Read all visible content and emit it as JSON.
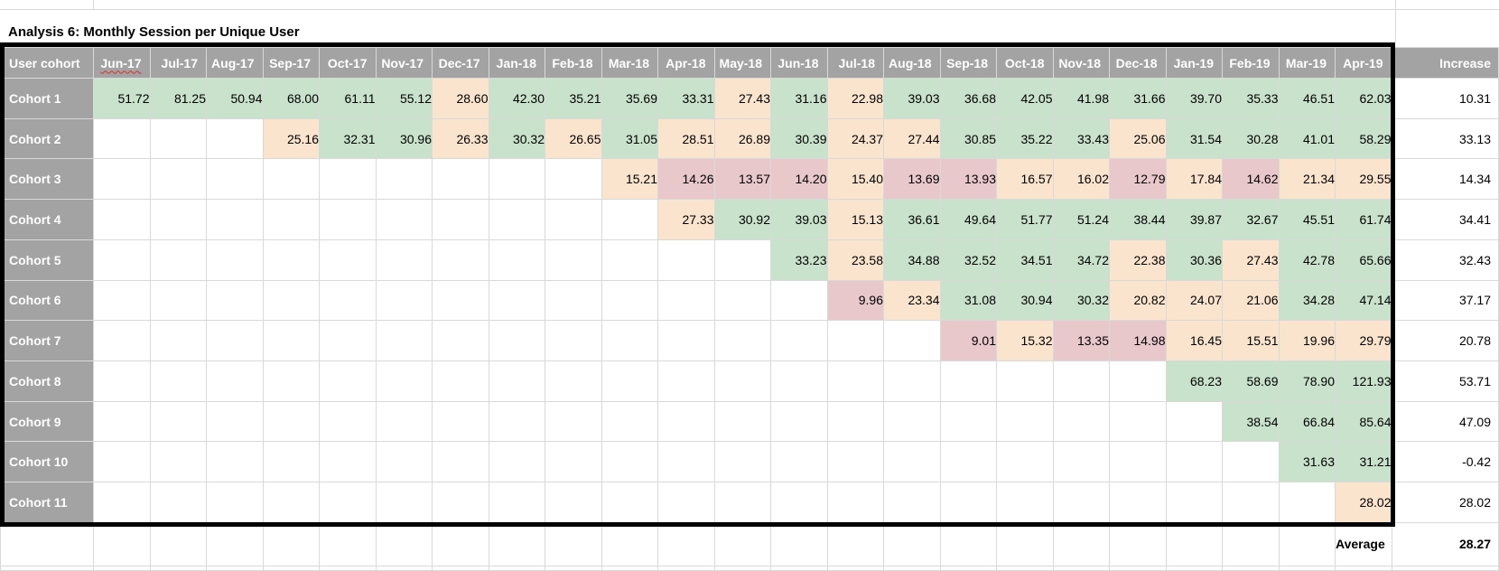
{
  "title": "Analysis 6: Monthly Session per Unique User",
  "table": {
    "corner_label": "User cohort",
    "months": [
      "Jun-17",
      "Jul-17",
      "Aug-17",
      "Sep-17",
      "Oct-17",
      "Nov-17",
      "Dec-17",
      "Jan-18",
      "Feb-18",
      "Mar-18",
      "Apr-18",
      "May-18",
      "Jun-18",
      "Jul-18",
      "Aug-18",
      "Sep-18",
      "Oct-18",
      "Nov-18",
      "Dec-18",
      "Jan-19",
      "Feb-19",
      "Mar-19",
      "Apr-19"
    ],
    "misspelled_month": "Jun-17",
    "increase_label": "Increase",
    "rows": [
      {
        "label": "Cohort 1",
        "start": 0,
        "values": [
          "51.72",
          "81.25",
          "50.94",
          "68.00",
          "61.11",
          "55.12",
          "28.60",
          "42.30",
          "35.21",
          "35.69",
          "33.31",
          "27.43",
          "31.16",
          "22.98",
          "39.03",
          "36.68",
          "42.05",
          "41.98",
          "31.66",
          "39.70",
          "35.33",
          "46.51",
          "62.03"
        ],
        "increase": "10.31"
      },
      {
        "label": "Cohort 2",
        "start": 3,
        "values": [
          "25.16",
          "32.31",
          "30.96",
          "26.33",
          "30.32",
          "26.65",
          "31.05",
          "28.51",
          "26.89",
          "30.39",
          "24.37",
          "27.44",
          "30.85",
          "35.22",
          "33.43",
          "25.06",
          "31.54",
          "30.28",
          "41.01",
          "58.29"
        ],
        "increase": "33.13"
      },
      {
        "label": "Cohort 3",
        "start": 9,
        "values": [
          "15.21",
          "14.26",
          "13.57",
          "14.20",
          "15.40",
          "13.69",
          "13.93",
          "16.57",
          "16.02",
          "12.79",
          "17.84",
          "14.62",
          "21.34",
          "29.55"
        ],
        "increase": "14.34"
      },
      {
        "label": "Cohort 4",
        "start": 10,
        "values": [
          "27.33",
          "30.92",
          "39.03",
          "15.13",
          "36.61",
          "49.64",
          "51.77",
          "51.24",
          "38.44",
          "39.87",
          "32.67",
          "45.51",
          "61.74"
        ],
        "increase": "34.41"
      },
      {
        "label": "Cohort 5",
        "start": 12,
        "values": [
          "33.23",
          "23.58",
          "34.88",
          "32.52",
          "34.51",
          "34.72",
          "22.38",
          "30.36",
          "27.43",
          "42.78",
          "65.66"
        ],
        "increase": "32.43"
      },
      {
        "label": "Cohort 6",
        "start": 13,
        "values": [
          "9.96",
          "23.34",
          "31.08",
          "30.94",
          "30.32",
          "20.82",
          "24.07",
          "21.06",
          "34.28",
          "47.14"
        ],
        "increase": "37.17"
      },
      {
        "label": "Cohort 7",
        "start": 15,
        "values": [
          "9.01",
          "15.32",
          "13.35",
          "14.98",
          "16.45",
          "15.51",
          "19.96",
          "29.79"
        ],
        "increase": "20.78"
      },
      {
        "label": "Cohort 8",
        "start": 19,
        "values": [
          "68.23",
          "58.69",
          "78.90",
          "121.93"
        ],
        "increase": "53.71"
      },
      {
        "label": "Cohort 9",
        "start": 20,
        "values": [
          "38.54",
          "66.84",
          "85.64"
        ],
        "increase": "47.09"
      },
      {
        "label": "Cohort 10",
        "start": 21,
        "values": [
          "31.63",
          "31.21"
        ],
        "increase": "-0.42"
      },
      {
        "label": "Cohort 11",
        "start": 22,
        "values": [
          "28.02"
        ],
        "increase": "28.02"
      }
    ],
    "average_label": "Average",
    "average_value": "28.27"
  },
  "colors": {
    "header_gray": "#a3a3a3",
    "cell_green": "#c9e2cb",
    "cell_tan": "#fae4cd",
    "cell_pink": "#e9c8cc",
    "gridline": "#d9d9d9",
    "selection_border": "#000000",
    "squiggle_red": "#d93025",
    "thresholds": {
      "green_min": 30,
      "tan_min": 15
    }
  }
}
